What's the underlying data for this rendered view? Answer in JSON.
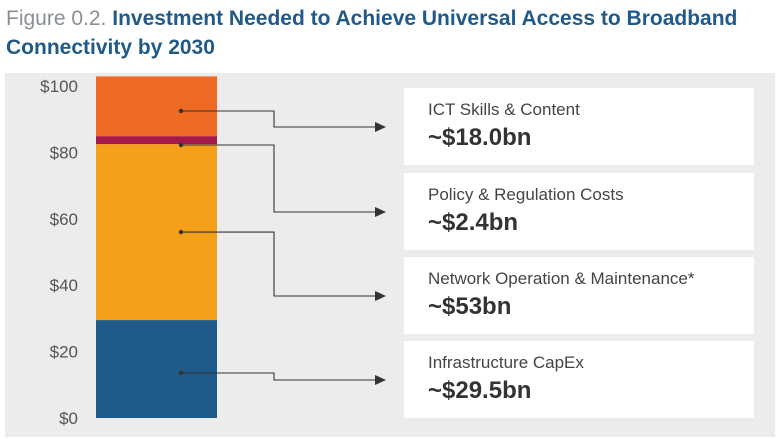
{
  "title": {
    "figure_label": "Figure 0.2.",
    "text": "Investment Needed to Achieve Universal Access to Broadband Connectivity by 2030"
  },
  "chart_data": {
    "type": "bar",
    "stacked": true,
    "ylim": [
      0,
      100
    ],
    "yticks": [
      "$0",
      "$20",
      "$40",
      "$60",
      "$80",
      "$100"
    ],
    "ytick_values": [
      0,
      20,
      40,
      60,
      80,
      100
    ],
    "series": [
      {
        "name": "Infrastructure CapEx",
        "value": 29.5,
        "value_label": "~$29.5bn",
        "color": "#1f5a8a"
      },
      {
        "name": "Network Operation & Maintenance*",
        "value": 53,
        "value_label": "~$53bn",
        "color": "#f5a01a"
      },
      {
        "name": "Policy & Regulation Costs",
        "value": 2.4,
        "value_label": "~$2.4bn",
        "color": "#a5194a"
      },
      {
        "name": "ICT Skills & Content",
        "value": 18.0,
        "value_label": "~$18.0bn",
        "color": "#ef6a23"
      }
    ]
  },
  "cards": [
    {
      "label": "ICT Skills & Content",
      "value": "~$18.0bn"
    },
    {
      "label": "Policy & Regulation Costs",
      "value": "~$2.4bn"
    },
    {
      "label": "Network Operation & Maintenance*",
      "value": "~$53bn"
    },
    {
      "label": "Infrastructure CapEx",
      "value": "~$29.5bn"
    }
  ]
}
